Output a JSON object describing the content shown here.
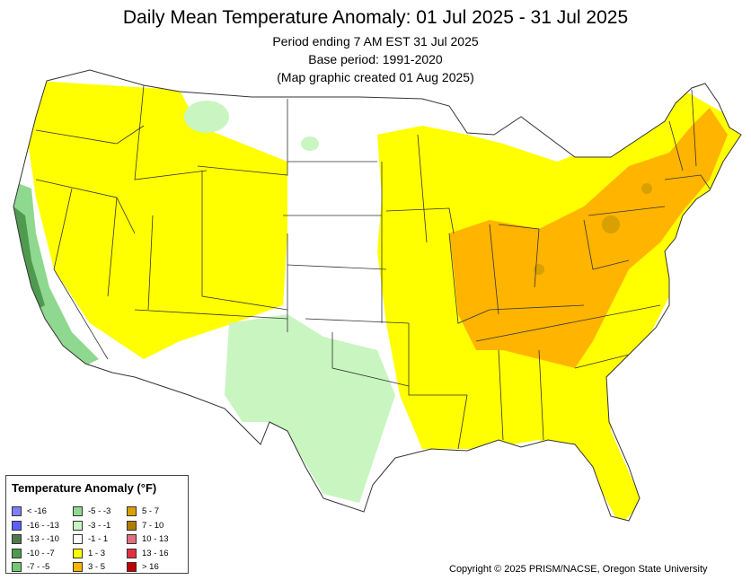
{
  "header": {
    "title": "Daily Mean Temperature Anomaly: 01 Jul 2025 - 31 Jul 2025",
    "period": "Period ending 7 AM EST 31 Jul 2025",
    "base": "Base period: 1991-2020",
    "created": "(Map graphic created 01 Aug 2025)"
  },
  "legend": {
    "title": "Temperature Anomaly (°F)",
    "items": [
      {
        "label": "< -16",
        "color": "#7f7fff"
      },
      {
        "label": "-16 - -13",
        "color": "#5f5fff"
      },
      {
        "label": "-13 - -10",
        "color": "#507850"
      },
      {
        "label": "-10 - -7",
        "color": "#4f9a4f"
      },
      {
        "label": "-7 - -5",
        "color": "#73c873"
      },
      {
        "label": "-5 - -3",
        "color": "#8fd88f"
      },
      {
        "label": "-3 - -1",
        "color": "#c8f5c0"
      },
      {
        "label": "-1 - 1",
        "color": "#ffffff"
      },
      {
        "label": "1 - 3",
        "color": "#ffff00"
      },
      {
        "label": "3 - 5",
        "color": "#ffb400"
      },
      {
        "label": "5 - 7",
        "color": "#d8a000"
      },
      {
        "label": "7 - 10",
        "color": "#b07c00"
      },
      {
        "label": "10 - 13",
        "color": "#e07080"
      },
      {
        "label": "13 - 16",
        "color": "#e03040"
      },
      {
        "label": "> 16",
        "color": "#c00000"
      }
    ]
  },
  "colors": {
    "state_border": "#333333",
    "coast": "#555555"
  },
  "footer": {
    "copyright": "Copyright © 2025 PRISM/NACSE, Oregon State University"
  }
}
